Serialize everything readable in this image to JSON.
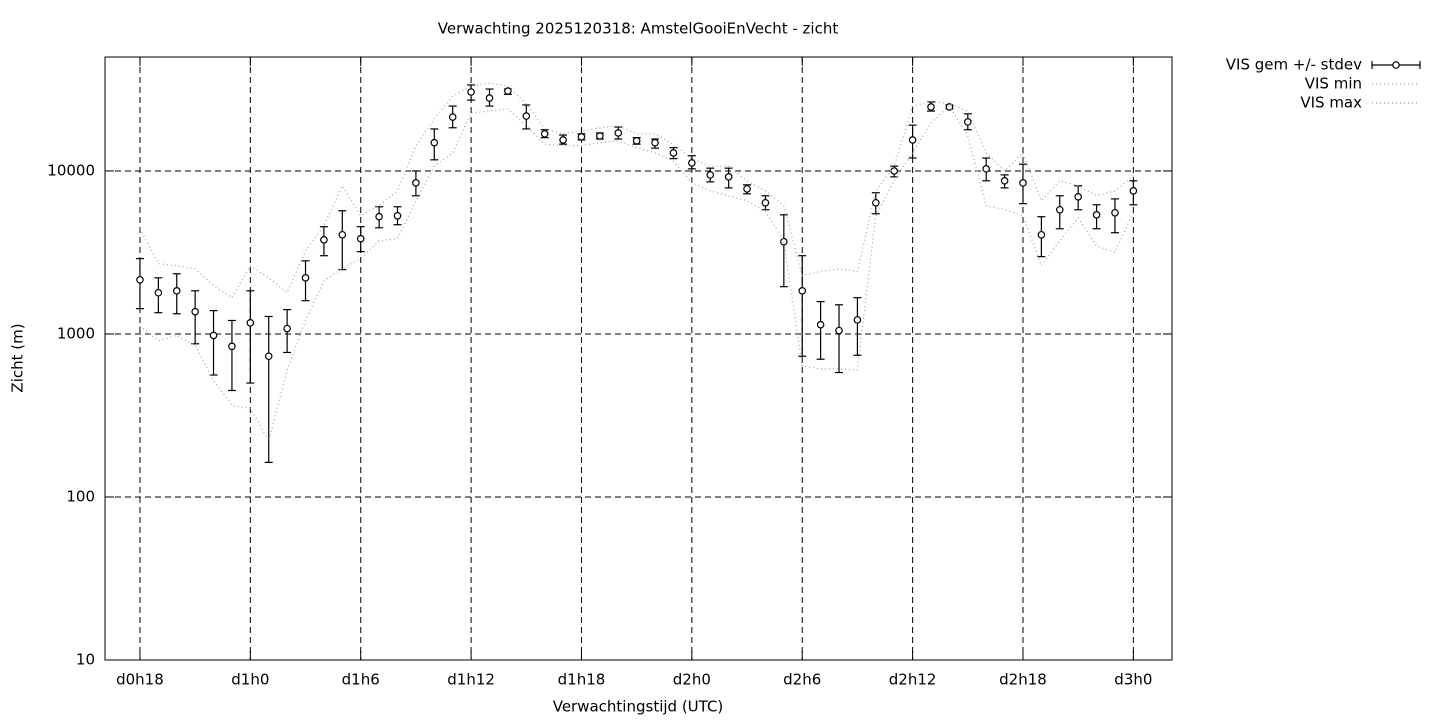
{
  "chart_data": {
    "type": "errorbar",
    "title": "Verwachting 2025120318: AmstelGooiEnVecht - zicht",
    "x_label": "Verwachtingstijd (UTC)",
    "y_label": "Zicht (m)",
    "log_y": true,
    "grid": true,
    "legend": "outside-top-right",
    "xlim": [
      16.1,
      74.1
    ],
    "ylim": [
      10,
      50000
    ],
    "xticks": [
      {
        "value": 18,
        "label": "d0h18"
      },
      {
        "value": 24,
        "label": "d1h0"
      },
      {
        "value": 30,
        "label": "d1h6"
      },
      {
        "value": 36,
        "label": "d1h12"
      },
      {
        "value": 42,
        "label": "d1h18"
      },
      {
        "value": 48,
        "label": "d2h0"
      },
      {
        "value": 54,
        "label": "d2h6"
      },
      {
        "value": 60,
        "label": "d2h12"
      },
      {
        "value": 66,
        "label": "d2h18"
      },
      {
        "value": 72,
        "label": "d3h0"
      }
    ],
    "yticks": [
      10,
      100,
      1000,
      10000
    ],
    "x": [
      18,
      19,
      20,
      21,
      22,
      23,
      24,
      25,
      26,
      27,
      28,
      29,
      30,
      31,
      32,
      33,
      34,
      35,
      36,
      37,
      38,
      39,
      40,
      41,
      42,
      43,
      44,
      45,
      46,
      47,
      48,
      49,
      50,
      51,
      52,
      53,
      54,
      55,
      56,
      57,
      58,
      59,
      60,
      61,
      62,
      63,
      64,
      65,
      66,
      67,
      68,
      69,
      70,
      71,
      72
    ],
    "series": [
      {
        "name": "VIS gem +/- stdev",
        "color": "#000000",
        "values": [
          2150,
          1790,
          1840,
          1370,
          980,
          840,
          1170,
          730,
          1080,
          2210,
          3780,
          4060,
          3840,
          5240,
          5310,
          8450,
          14900,
          21400,
          30500,
          28000,
          30900,
          21700,
          16900,
          15500,
          16200,
          16400,
          17100,
          15300,
          14900,
          12900,
          11200,
          9460,
          9200,
          7760,
          6380,
          3680,
          1840,
          1140,
          1050,
          1220,
          6380,
          10000,
          15500,
          24700,
          24700,
          20000,
          10300,
          8700,
          8450,
          4060,
          5780,
          6940,
          5380,
          5540,
          7550
        ],
        "lower": [
          1430,
          1350,
          1330,
          870,
          560,
          450,
          500,
          163,
          770,
          1600,
          3020,
          2480,
          3200,
          4480,
          4680,
          7040,
          11700,
          18400,
          27200,
          25000,
          29500,
          18100,
          16000,
          14600,
          15500,
          15700,
          15700,
          14600,
          13800,
          11900,
          10300,
          8570,
          7870,
          7240,
          5780,
          1950,
          730,
          700,
          580,
          740,
          5460,
          9200,
          12000,
          23300,
          24000,
          17900,
          8700,
          7870,
          6300,
          2980,
          4420,
          5780,
          4420,
          4180,
          6200
        ],
        "upper": [
          2900,
          2210,
          2340,
          1840,
          1390,
          1210,
          1840,
          1280,
          1410,
          2810,
          4550,
          5700,
          4550,
          6030,
          6030,
          10000,
          18100,
          25000,
          33700,
          31800,
          31800,
          25400,
          17900,
          16600,
          16900,
          17100,
          18600,
          16000,
          15700,
          13900,
          12400,
          10400,
          10400,
          8220,
          7040,
          5380,
          3020,
          1580,
          1510,
          1670,
          7350,
          10700,
          19100,
          26500,
          25400,
          22400,
          12000,
          9460,
          11000,
          5240,
          7040,
          8110,
          6200,
          6740,
          8700
        ]
      },
      {
        "name": "VIS min",
        "color": "#a0a0a0",
        "values": [
          1120,
          910,
          980,
          850,
          520,
          365,
          350,
          220,
          600,
          1210,
          2120,
          2510,
          2900,
          3730,
          3840,
          6560,
          10700,
          12900,
          22700,
          23300,
          24000,
          18900,
          14600,
          14300,
          14300,
          14900,
          15300,
          13900,
          12900,
          11500,
          8450,
          7550,
          7040,
          6560,
          5620,
          3730,
          640,
          610,
          610,
          600,
          5310,
          8700,
          12900,
          19700,
          25000,
          16400,
          6110,
          5800,
          5310,
          2620,
          3730,
          5150,
          3460,
          3160,
          5620
        ]
      },
      {
        "name": "VIS max",
        "color": "#a0a0a0",
        "values": [
          4420,
          2700,
          2620,
          2510,
          1980,
          1670,
          2620,
          2210,
          1790,
          3240,
          4610,
          8110,
          5310,
          6110,
          7550,
          14300,
          20800,
          28800,
          33200,
          34600,
          33200,
          25800,
          18100,
          16900,
          17600,
          18400,
          18900,
          16900,
          16900,
          14600,
          11900,
          10700,
          10700,
          8700,
          7550,
          6110,
          2280,
          2420,
          2510,
          2420,
          7550,
          10700,
          25000,
          26800,
          25800,
          23300,
          12900,
          10000,
          12900,
          6560,
          8700,
          8110,
          7040,
          7550,
          9350
        ]
      }
    ]
  }
}
